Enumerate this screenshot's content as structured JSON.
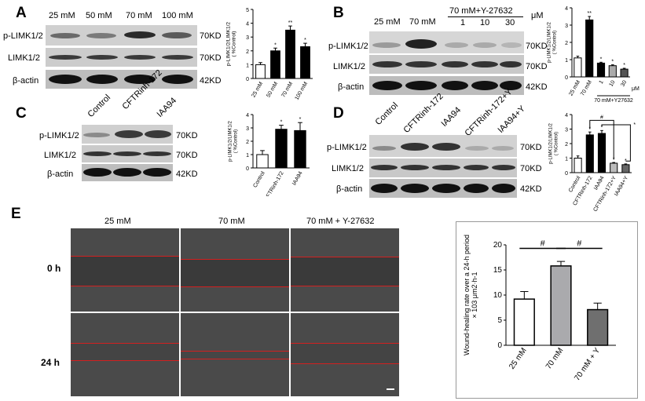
{
  "panels": {
    "A": {
      "letter": "A",
      "lanes": [
        "25 mM",
        "50 mM",
        "70 mM",
        "100 mM"
      ],
      "rows": [
        {
          "label": "p-LIMK1/2",
          "kd": "70KD"
        },
        {
          "label": "LIMK1/2",
          "kd": "70KD"
        },
        {
          "label": "β-actin",
          "kd": "42KD"
        }
      ],
      "chart_data": {
        "type": "bar",
        "categories": [
          "25 mM",
          "50 mM",
          "70 mM",
          "100 mM"
        ],
        "values": [
          1.0,
          2.0,
          3.5,
          2.3
        ],
        "errors": [
          0.15,
          0.2,
          0.3,
          0.25
        ],
        "significance": [
          "",
          "*",
          "**",
          "*"
        ],
        "ylabel": "p-LIMK1/2/LIMK1/2 (%Control)",
        "ylim": [
          0,
          5
        ],
        "yticks": [
          0,
          1,
          2,
          3,
          4,
          5
        ],
        "fills": [
          "#ffffff",
          "#000000",
          "#000000",
          "#000000"
        ]
      }
    },
    "B": {
      "letter": "B",
      "lanes": [
        "25 mM",
        "70 mM"
      ],
      "group_label": "70 mM+Y-27632",
      "group_lanes": [
        "1",
        "10",
        "30"
      ],
      "unit": "μM",
      "rows": [
        {
          "label": "p-LIMK1/2",
          "kd": "70KD"
        },
        {
          "label": "LIMK1/2",
          "kd": "70KD"
        },
        {
          "label": "β-actin",
          "kd": "42KD"
        }
      ],
      "chart_data": {
        "type": "bar",
        "categories": [
          "25 mM",
          "70 mM",
          "1",
          "10",
          "30"
        ],
        "values": [
          1.1,
          3.3,
          0.8,
          0.65,
          0.45
        ],
        "errors": [
          0.1,
          0.2,
          0.05,
          0.05,
          0.05
        ],
        "significance": [
          "",
          "**",
          "*",
          "*",
          "*"
        ],
        "ylabel": "p-LIMK1/2/LIMK1/2 (%Control)",
        "group_label": "70 mM+Y27632",
        "unit": "μM",
        "ylim": [
          0,
          4
        ],
        "yticks": [
          0,
          1,
          2,
          3,
          4
        ],
        "fills": [
          "#ffffff",
          "#000000",
          "#000000",
          "#aaaaaa",
          "#555555"
        ]
      }
    },
    "C": {
      "letter": "C",
      "lanes": [
        "Control",
        "CFTRinh-172",
        "IAA94"
      ],
      "rows": [
        {
          "label": "p-LIMK1/2",
          "kd": "70KD"
        },
        {
          "label": "LIMK1/2",
          "kd": "70KD"
        },
        {
          "label": "β-actin",
          "kd": "42KD"
        }
      ],
      "chart_data": {
        "type": "bar",
        "categories": [
          "Control",
          "CFTRinh-172",
          "IAA94"
        ],
        "values": [
          1.0,
          2.9,
          2.8
        ],
        "errors": [
          0.3,
          0.3,
          0.6
        ],
        "significance": [
          "",
          "*",
          "*"
        ],
        "ylabel": "p-LIMK1/2/LIMK1/2 (%Control)",
        "ylim": [
          0,
          4
        ],
        "yticks": [
          0,
          1,
          2,
          3,
          4
        ],
        "fills": [
          "#ffffff",
          "#000000",
          "#000000"
        ]
      }
    },
    "D": {
      "letter": "D",
      "lanes": [
        "Control",
        "CFTRinh-172",
        "IAA94",
        "CFTRinh-172+Y",
        "IAA94+Y"
      ],
      "rows": [
        {
          "label": "p-LIMK1/2",
          "kd": "70KD"
        },
        {
          "label": "LIMK1/2",
          "kd": "70KD"
        },
        {
          "label": "β-actin",
          "kd": "42KD"
        }
      ],
      "chart_data": {
        "type": "bar",
        "categories": [
          "Control",
          "CFTRinh-172",
          "IAA94",
          "CFTRinh-172+Y",
          "IAA94+Y"
        ],
        "values": [
          1.0,
          2.6,
          2.7,
          0.65,
          0.55
        ],
        "errors": [
          0.15,
          0.2,
          0.2,
          0.05,
          0.05
        ],
        "significance": [
          "",
          "*",
          "*",
          "*",
          "*"
        ],
        "bracket_marks": [
          "#",
          "*"
        ],
        "ylabel": "p-LIMK1/2/LIMK1/2 (%Control)",
        "ylim": [
          0,
          4
        ],
        "yticks": [
          0,
          1,
          2,
          3,
          4
        ],
        "fills": [
          "#ffffff",
          "#000000",
          "#000000",
          "#bbbbbb",
          "#666666"
        ]
      }
    },
    "E": {
      "letter": "E",
      "columns": [
        "25 mM",
        "70 mM",
        "70 mM + Y-27632"
      ],
      "time_rows": [
        "0 h",
        "24 h"
      ],
      "chart_data": {
        "type": "bar",
        "categories": [
          "25 mM",
          "70 mM",
          "70 mM + Y"
        ],
        "values": [
          9.2,
          15.8,
          7.1
        ],
        "errors": [
          1.5,
          0.9,
          1.3
        ],
        "bracket_marks": [
          "#",
          "#"
        ],
        "ylabel": "Wound-healing rate over a 24-h period ×103 μm2·h-1",
        "ylim": [
          0,
          20
        ],
        "yticks": [
          0,
          5,
          10,
          15,
          20
        ],
        "fills": [
          "#ffffff",
          "#aaaaad",
          "#6f6f6f"
        ]
      }
    }
  }
}
